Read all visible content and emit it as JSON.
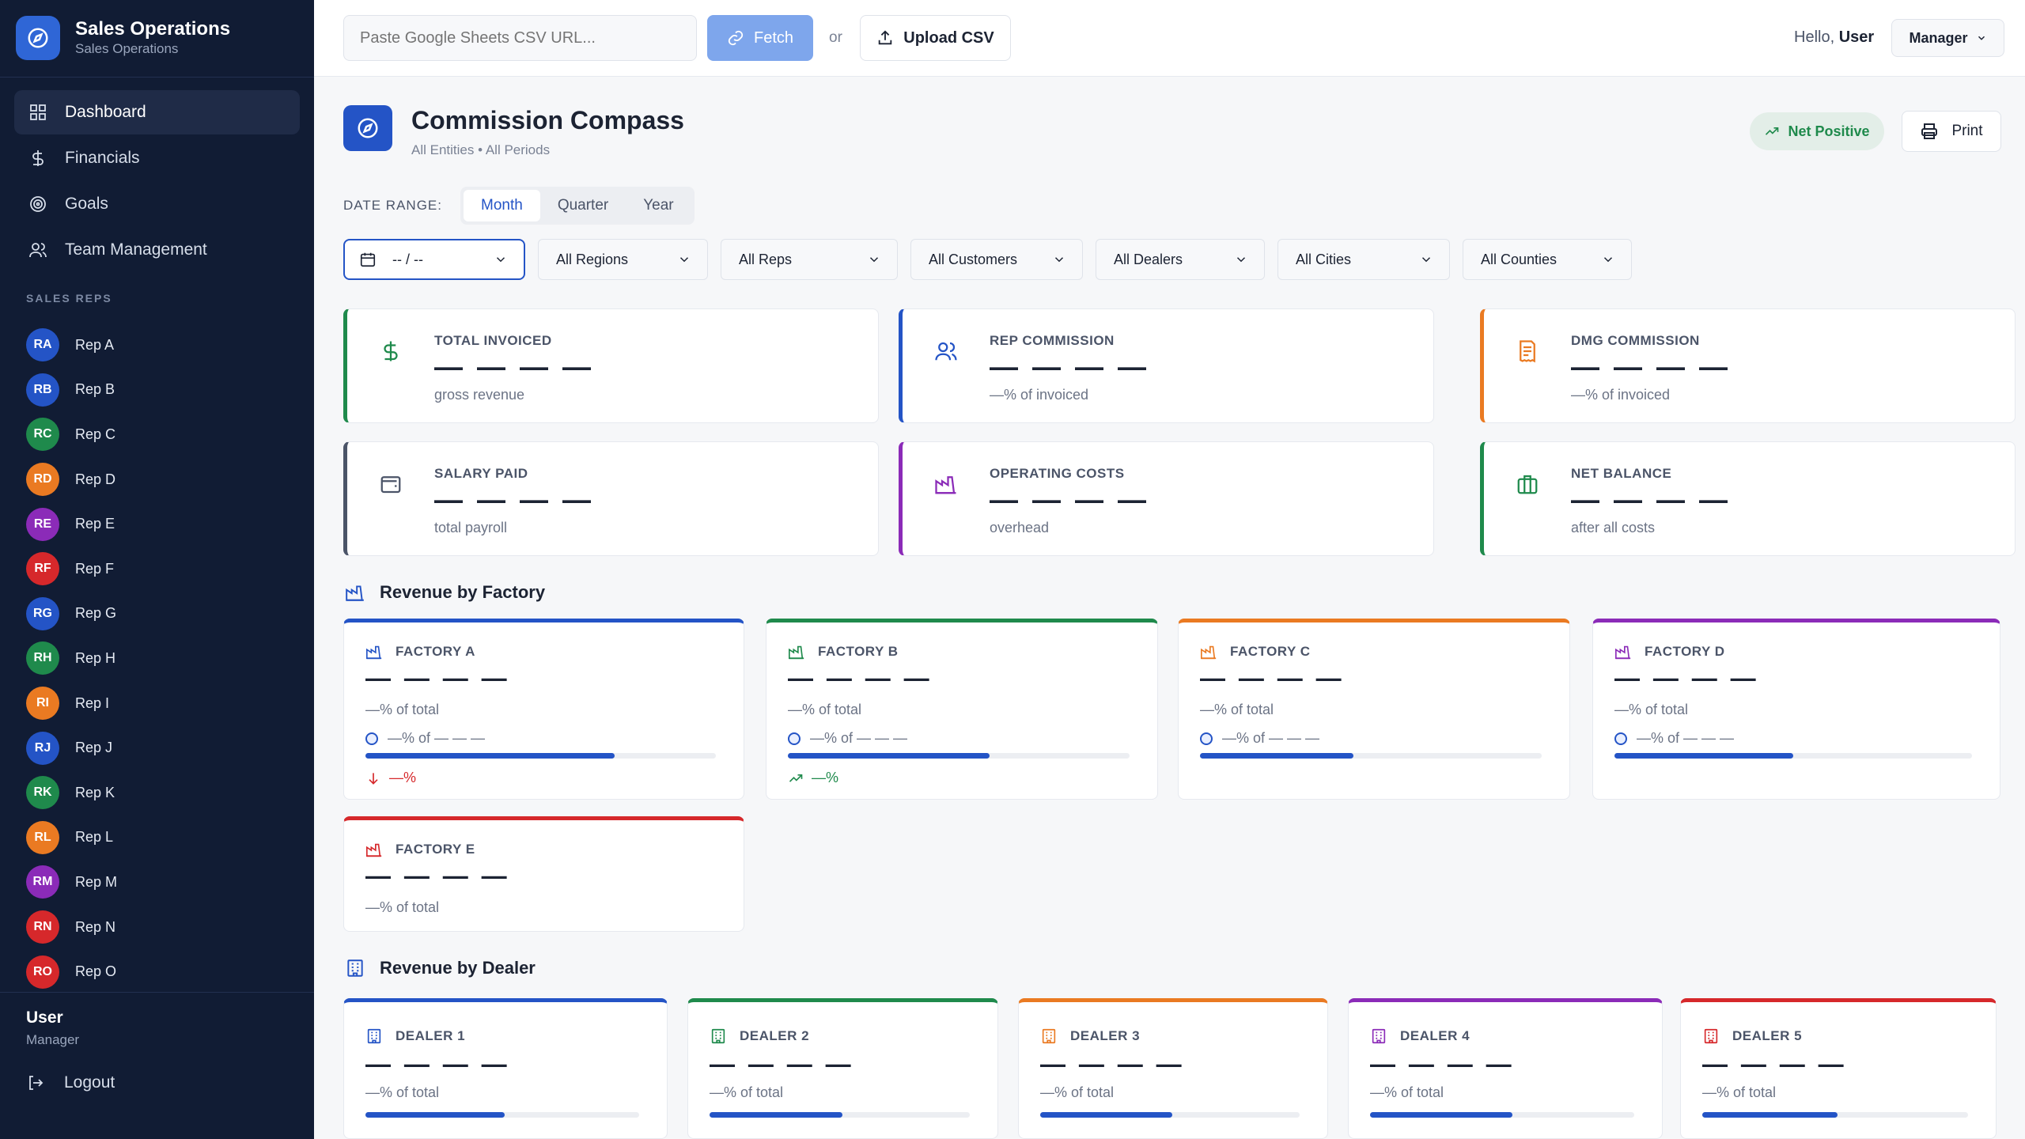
{
  "brand": {
    "title": "Sales Operations",
    "subtitle": "Sales Operations"
  },
  "nav": [
    {
      "label": "Dashboard",
      "icon": "grid-icon",
      "active": true
    },
    {
      "label": "Financials",
      "icon": "dollar-icon"
    },
    {
      "label": "Goals",
      "icon": "target-icon"
    },
    {
      "label": "Team Management",
      "icon": "users-icon"
    }
  ],
  "reps_title": "SALES REPS",
  "reps": [
    {
      "initials": "RA",
      "name": "Rep A",
      "color": "#2454c6"
    },
    {
      "initials": "RB",
      "name": "Rep B",
      "color": "#2454c6"
    },
    {
      "initials": "RC",
      "name": "Rep C",
      "color": "#1f8a4c"
    },
    {
      "initials": "RD",
      "name": "Rep D",
      "color": "#ea7a22"
    },
    {
      "initials": "RE",
      "name": "Rep E",
      "color": "#8b2bb8"
    },
    {
      "initials": "RF",
      "name": "Rep F",
      "color": "#d6282b"
    },
    {
      "initials": "RG",
      "name": "Rep G",
      "color": "#2454c6"
    },
    {
      "initials": "RH",
      "name": "Rep H",
      "color": "#1f8a4c"
    },
    {
      "initials": "RI",
      "name": "Rep I",
      "color": "#ea7a22"
    },
    {
      "initials": "RJ",
      "name": "Rep J",
      "color": "#2454c6"
    },
    {
      "initials": "RK",
      "name": "Rep K",
      "color": "#1f8a4c"
    },
    {
      "initials": "RL",
      "name": "Rep L",
      "color": "#ea7a22"
    },
    {
      "initials": "RM",
      "name": "Rep M",
      "color": "#8b2bb8"
    },
    {
      "initials": "RN",
      "name": "Rep N",
      "color": "#d6282b"
    },
    {
      "initials": "RO",
      "name": "Rep O",
      "color": "#d6282b"
    }
  ],
  "user": {
    "name": "User",
    "role": "Manager",
    "logout": "Logout"
  },
  "topbar": {
    "csv_placeholder": "Paste Google Sheets CSV URL...",
    "fetch_label": "Fetch",
    "or_label": "or",
    "upload_label": "Upload CSV",
    "hello_prefix": "Hello,",
    "hello_user": "User",
    "role_label": "Manager"
  },
  "header": {
    "title": "Commission Compass",
    "subtitle": "All Entities • All Periods",
    "badge": "Net Positive",
    "print": "Print"
  },
  "date_range": {
    "label": "DATE RANGE:",
    "options": [
      "Month",
      "Quarter",
      "Year"
    ],
    "selected": "Month"
  },
  "filters": {
    "date_value": "-- / --",
    "items": [
      "All Regions",
      "All Reps",
      "All Customers",
      "All Dealers",
      "All Cities",
      "All Counties"
    ]
  },
  "kpis": [
    {
      "label": "TOTAL INVOICED",
      "value": "— — — —",
      "sub": "gross revenue",
      "color": "#1f8a4c",
      "icon": "dollar-icon"
    },
    {
      "label": "REP COMMISSION",
      "value": "— — — —",
      "sub": "—% of invoiced",
      "color": "#2454c6",
      "icon": "users-icon"
    },
    {
      "label": "DMG COMMISSION",
      "value": "— — — —",
      "sub": "—% of invoiced",
      "color": "#ea7a22",
      "icon": "receipt-icon"
    },
    {
      "label": "SALARY PAID",
      "value": "— — — —",
      "sub": "total payroll",
      "color": "#4b5468",
      "icon": "wallet-icon"
    },
    {
      "label": "OPERATING COSTS",
      "value": "— — — —",
      "sub": "overhead",
      "color": "#8b2bb8",
      "icon": "factory-icon"
    },
    {
      "label": "NET BALANCE",
      "value": "— — — —",
      "sub": "after all costs",
      "color": "#1f8a4c",
      "icon": "briefcase-icon"
    }
  ],
  "factory_section": {
    "title": "Revenue by Factory"
  },
  "factories": [
    {
      "name": "FACTORY A",
      "value": "— — — —",
      "pct": "—% of total",
      "share": "—% of — — —",
      "fill": 0.71,
      "trend": "—%",
      "trend_dir": "down",
      "color": "#2454c6"
    },
    {
      "name": "FACTORY B",
      "value": "— — — —",
      "pct": "—% of total",
      "share": "—% of — — —",
      "fill": 0.59,
      "trend": "—%",
      "trend_dir": "up",
      "color": "#1f8a4c"
    },
    {
      "name": "FACTORY C",
      "value": "— — — —",
      "pct": "—% of total",
      "share": "—% of — — —",
      "fill": 0.45,
      "color": "#ea7a22"
    },
    {
      "name": "FACTORY D",
      "value": "— — — —",
      "pct": "—% of total",
      "share": "—% of — — —",
      "fill": 0.5,
      "color": "#8b2bb8"
    },
    {
      "name": "FACTORY E",
      "value": "— — — —",
      "pct": "—% of total",
      "color": "#d6282b"
    }
  ],
  "dealer_section": {
    "title": "Revenue by Dealer"
  },
  "dealers": [
    {
      "name": "DEALER 1",
      "value": "— — — —",
      "pct": "—% of total",
      "fill": 0.51,
      "color": "#2454c6"
    },
    {
      "name": "DEALER 2",
      "value": "— — — —",
      "pct": "—% of total",
      "fill": 0.51,
      "color": "#1f8a4c"
    },
    {
      "name": "DEALER 3",
      "value": "— — — —",
      "pct": "—% of total",
      "fill": 0.51,
      "color": "#ea7a22"
    },
    {
      "name": "DEALER 4",
      "value": "— — — —",
      "pct": "—% of total",
      "fill": 0.54,
      "color": "#8b2bb8"
    },
    {
      "name": "DEALER 5",
      "value": "— — — —",
      "pct": "—% of total",
      "fill": 0.51,
      "color": "#d6282b"
    }
  ]
}
